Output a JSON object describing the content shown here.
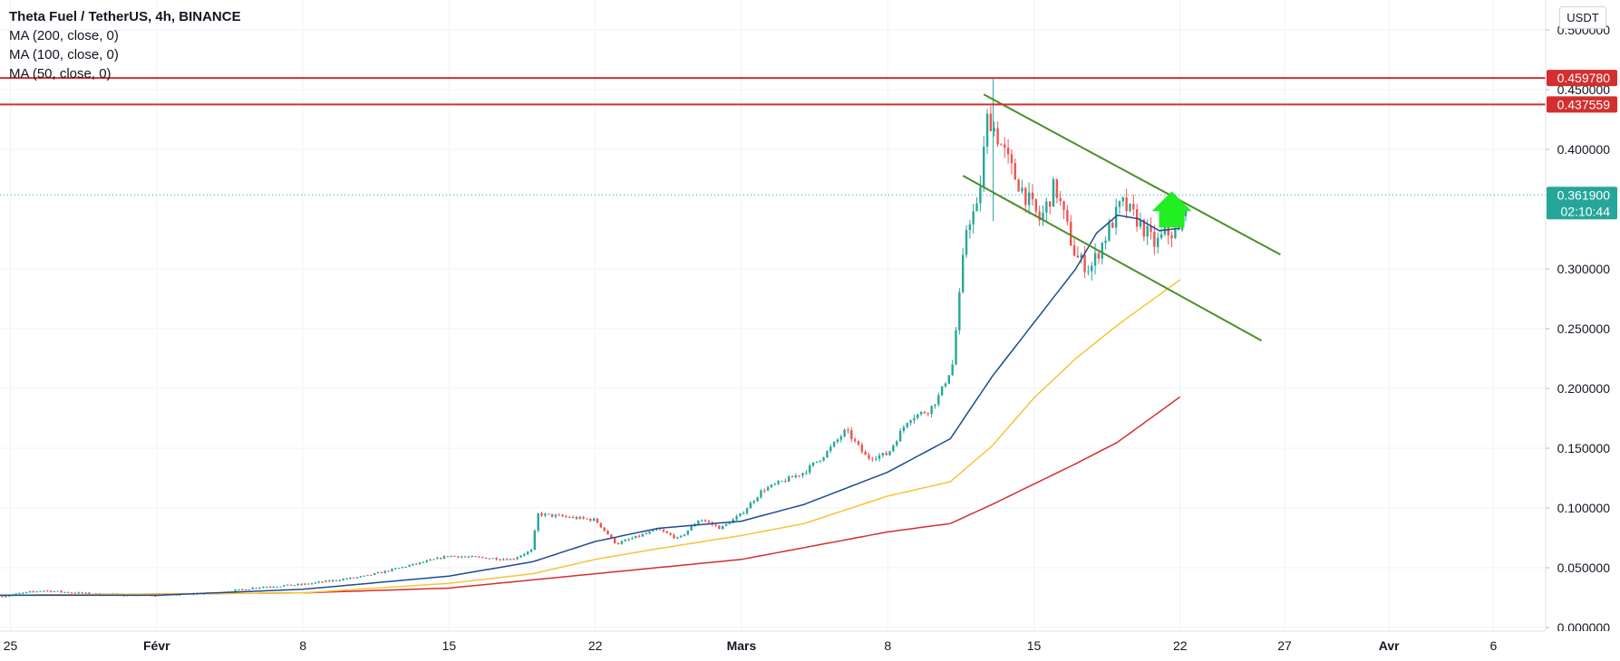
{
  "chart_data": {
    "type": "candlestick",
    "title": "Theta Fuel / TetherUS, 4h, BINANCE",
    "indicators": [
      {
        "label": "MA (200, close, 0)",
        "color": "#d32f2f"
      },
      {
        "label": "MA (100, close, 0)",
        "color": "#f5c33b"
      },
      {
        "label": "MA (50, close, 0)",
        "color": "#1e4b8f"
      }
    ],
    "currency": "USDT",
    "y_ticks": [
      "0.500000",
      "0.450000",
      "0.400000",
      "0.300000",
      "0.250000",
      "0.200000",
      "0.150000",
      "0.100000",
      "0.050000",
      "0.000000"
    ],
    "y_tick_values": [
      0.5,
      0.45,
      0.4,
      0.3,
      0.25,
      0.2,
      0.15,
      0.1,
      0.05,
      0.0
    ],
    "ylim": [
      -0.003,
      0.525
    ],
    "x_ticks": [
      {
        "label": "25",
        "day": -7
      },
      {
        "label": "Févr",
        "day": 0
      },
      {
        "label": "8",
        "day": 7
      },
      {
        "label": "15",
        "day": 14
      },
      {
        "label": "22",
        "day": 21
      },
      {
        "label": "Mars",
        "day": 28
      },
      {
        "label": "8",
        "day": 35
      },
      {
        "label": "15",
        "day": 42
      },
      {
        "label": "22",
        "day": 49
      },
      {
        "label": "27",
        "day": 54
      },
      {
        "label": "Avr",
        "day": 59
      },
      {
        "label": "6",
        "day": 64
      }
    ],
    "xlim_days": [
      -7.5,
      66.5
    ],
    "price_lines": [
      {
        "label": "0.459780",
        "value": 0.45978,
        "color": "#d32f2f"
      },
      {
        "label": "0.437559",
        "value": 0.437559,
        "color": "#d32f2f"
      }
    ],
    "last_price": {
      "label": "0.361900",
      "value": 0.3619,
      "countdown": "02:10:44",
      "color": "#26a69a"
    },
    "price_anchors": [
      [
        -7.5,
        0.026
      ],
      [
        -5.5,
        0.031
      ],
      [
        -3,
        0.028
      ],
      [
        0,
        0.027
      ],
      [
        3,
        0.029
      ],
      [
        5,
        0.034
      ],
      [
        7,
        0.036
      ],
      [
        10,
        0.043
      ],
      [
        14,
        0.06
      ],
      [
        17,
        0.057
      ],
      [
        18,
        0.065
      ],
      [
        18.2,
        0.095
      ],
      [
        21,
        0.09
      ],
      [
        22,
        0.07
      ],
      [
        24,
        0.082
      ],
      [
        25,
        0.074
      ],
      [
        26,
        0.091
      ],
      [
        27,
        0.083
      ],
      [
        28,
        0.095
      ],
      [
        29,
        0.115
      ],
      [
        31,
        0.13
      ],
      [
        32,
        0.145
      ],
      [
        33,
        0.165
      ],
      [
        34,
        0.142
      ],
      [
        35,
        0.145
      ],
      [
        36,
        0.175
      ],
      [
        37,
        0.182
      ],
      [
        37.5,
        0.195
      ],
      [
        38.1,
        0.22
      ],
      [
        38.8,
        0.34
      ],
      [
        39.3,
        0.35
      ],
      [
        39.8,
        0.43
      ],
      [
        41,
        0.38
      ],
      [
        42.3,
        0.34
      ],
      [
        43,
        0.37
      ],
      [
        44,
        0.31
      ],
      [
        44.7,
        0.3
      ],
      [
        45.5,
        0.33
      ],
      [
        46.2,
        0.355
      ],
      [
        47,
        0.34
      ],
      [
        47.8,
        0.32
      ],
      [
        48.3,
        0.33
      ],
      [
        49,
        0.33
      ],
      [
        49.3,
        0.362
      ]
    ],
    "ma50": [
      [
        -7.5,
        0.027
      ],
      [
        0,
        0.027
      ],
      [
        7,
        0.032
      ],
      [
        14,
        0.043
      ],
      [
        18,
        0.055
      ],
      [
        21,
        0.072
      ],
      [
        24,
        0.083
      ],
      [
        28,
        0.089
      ],
      [
        31,
        0.103
      ],
      [
        35,
        0.13
      ],
      [
        38,
        0.158
      ],
      [
        40,
        0.21
      ],
      [
        42,
        0.255
      ],
      [
        44,
        0.3
      ],
      [
        45,
        0.33
      ],
      [
        46,
        0.345
      ],
      [
        47,
        0.342
      ],
      [
        48,
        0.332
      ],
      [
        49,
        0.334
      ]
    ],
    "ma100": [
      [
        -7.5,
        0.027
      ],
      [
        7,
        0.029
      ],
      [
        14,
        0.037
      ],
      [
        18,
        0.045
      ],
      [
        21,
        0.057
      ],
      [
        24,
        0.066
      ],
      [
        28,
        0.077
      ],
      [
        31,
        0.087
      ],
      [
        35,
        0.11
      ],
      [
        38,
        0.122
      ],
      [
        40,
        0.152
      ],
      [
        42,
        0.192
      ],
      [
        44,
        0.225
      ],
      [
        46,
        0.253
      ],
      [
        49,
        0.291
      ]
    ],
    "ma200": [
      [
        -7.5,
        0.027
      ],
      [
        7,
        0.029
      ],
      [
        14,
        0.033
      ],
      [
        21,
        0.045
      ],
      [
        28,
        0.057
      ],
      [
        35,
        0.08
      ],
      [
        38,
        0.087
      ],
      [
        40,
        0.103
      ],
      [
        42,
        0.12
      ],
      [
        44,
        0.137
      ],
      [
        46,
        0.155
      ],
      [
        49,
        0.193
      ]
    ],
    "channel_lines": [
      {
        "from": [
          39.6,
          0.446
        ],
        "to": [
          53.8,
          0.312
        ],
        "color": "#4b8f28"
      },
      {
        "from": [
          38.6,
          0.378
        ],
        "to": [
          52.9,
          0.24
        ],
        "color": "#4b8f28"
      }
    ],
    "arrow": {
      "day": 48.6,
      "value": 0.365,
      "color": "#22ee22"
    }
  }
}
